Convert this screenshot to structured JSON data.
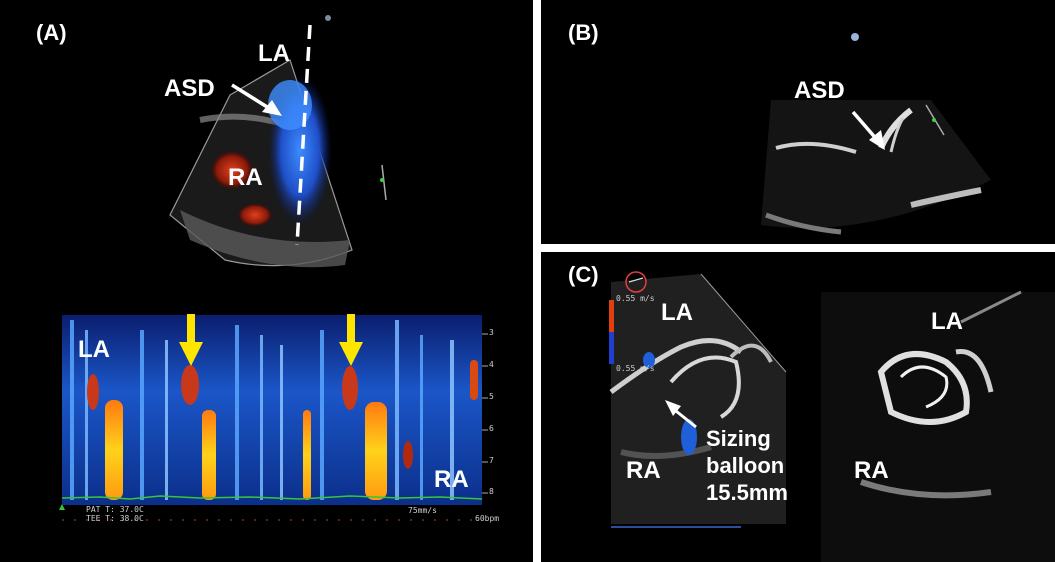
{
  "panel_a": {
    "letter": "(A)",
    "labels": {
      "la_top": "LA",
      "asd": "ASD",
      "ra_top": "RA",
      "la_bottom": "LA",
      "ra_bottom": "RA"
    },
    "depth_ticks": [
      "3",
      "4",
      "5",
      "6",
      "7",
      "8"
    ],
    "footer": {
      "pat_t": "PAT T: 37.0C",
      "tee_t": "TEE T: 38.0C",
      "speed": "75mm/s",
      "heart_rate": "60bpm"
    }
  },
  "panel_b": {
    "letter": "(B)",
    "labels": {
      "asd": "ASD"
    }
  },
  "panel_c": {
    "letter": "(C)",
    "labels": {
      "la_left": "LA",
      "ra_left": "RA",
      "balloon_line1": "Sizing",
      "balloon_line2": "balloon",
      "balloon_line3": "15.5mm",
      "la_right": "LA",
      "ra_right": "RA"
    },
    "scale": {
      "top": "0.55 m/s",
      "bottom": "0.55 m/s"
    }
  },
  "colors": {
    "flow_blue": "#1f5fd8",
    "flow_red": "#c42a10",
    "arrow_yellow": "#ffe600",
    "arrow_white": "#ffffff"
  }
}
